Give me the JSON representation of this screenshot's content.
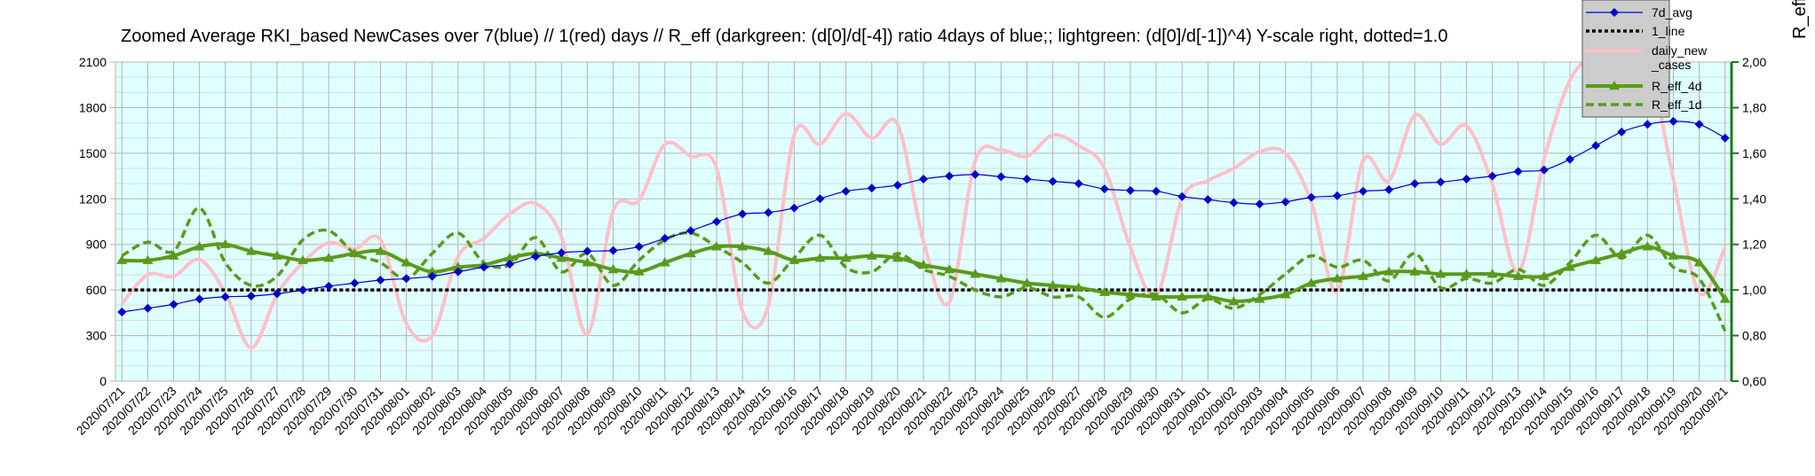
{
  "chart_data": {
    "type": "line",
    "title": "Zoomed Average RKI_based NewCases over 7(blue) // 1(red) days //  R_eff (darkgreen: (d[0]/d[-4]) ratio 4days of blue;; lightgreen: (d[0]/d[-1])^4) Y-scale right, dotted=1.0",
    "ylabel_right": "R_eff",
    "ylim_left": [
      0,
      2100
    ],
    "ylim_right": [
      0.6,
      2.0
    ],
    "yticks_left": [
      "0",
      "300",
      "600",
      "900",
      "1200",
      "1500",
      "1800",
      "2100"
    ],
    "yticks_right": [
      "0,60",
      "0,80",
      "1,00",
      "1,20",
      "1,40",
      "1,60",
      "1,80",
      "2,00"
    ],
    "grid": true,
    "legend_position": "top-right",
    "categories": [
      "2020/07/21",
      "2020/07/22",
      "2020/07/23",
      "2020/07/24",
      "2020/07/25",
      "2020/07/26",
      "2020/07/27",
      "2020/07/28",
      "2020/07/29",
      "2020/07/30",
      "2020/07/31",
      "2020/08/01",
      "2020/08/02",
      "2020/08/03",
      "2020/08/04",
      "2020/08/05",
      "2020/08/06",
      "2020/08/07",
      "2020/08/08",
      "2020/08/09",
      "2020/08/10",
      "2020/08/11",
      "2020/08/12",
      "2020/08/13",
      "2020/08/14",
      "2020/08/15",
      "2020/08/16",
      "2020/08/17",
      "2020/08/18",
      "2020/08/19",
      "2020/08/20",
      "2020/08/21",
      "2020/08/22",
      "2020/08/23",
      "2020/08/24",
      "2020/08/25",
      "2020/08/26",
      "2020/08/27",
      "2020/08/28",
      "2020/08/29",
      "2020/08/30",
      "2020/08/31",
      "2020/09/01",
      "2020/09/02",
      "2020/09/03",
      "2020/09/04",
      "2020/09/05",
      "2020/09/06",
      "2020/09/07",
      "2020/09/08",
      "2020/09/09",
      "2020/09/10",
      "2020/09/11",
      "2020/09/12",
      "2020/09/13",
      "2020/09/14",
      "2020/09/15",
      "2020/09/16",
      "2020/09/17",
      "2020/09/18",
      "2020/09/19",
      "2020/09/20",
      "2020/09/21"
    ],
    "series": [
      {
        "name": "7d_avg",
        "axis": "left",
        "color": "#0000cc",
        "marker": "diamond",
        "values": [
          455,
          480,
          505,
          540,
          555,
          560,
          575,
          600,
          625,
          645,
          665,
          675,
          690,
          720,
          750,
          770,
          820,
          845,
          855,
          860,
          885,
          940,
          990,
          1050,
          1100,
          1110,
          1140,
          1200,
          1250,
          1270,
          1290,
          1330,
          1350,
          1360,
          1345,
          1330,
          1315,
          1300,
          1265,
          1255,
          1250,
          1215,
          1195,
          1175,
          1165,
          1180,
          1210,
          1220,
          1250,
          1260,
          1300,
          1310,
          1330,
          1350,
          1380,
          1390,
          1460,
          1550,
          1640,
          1690,
          1710,
          1690,
          1600
        ]
      },
      {
        "name": "1_line",
        "axis": "right",
        "color": "#000000",
        "style": "dotted",
        "values": [
          1.0,
          1.0,
          1.0,
          1.0,
          1.0,
          1.0,
          1.0,
          1.0,
          1.0,
          1.0,
          1.0,
          1.0,
          1.0,
          1.0,
          1.0,
          1.0,
          1.0,
          1.0,
          1.0,
          1.0,
          1.0,
          1.0,
          1.0,
          1.0,
          1.0,
          1.0,
          1.0,
          1.0,
          1.0,
          1.0,
          1.0,
          1.0,
          1.0,
          1.0,
          1.0,
          1.0,
          1.0,
          1.0,
          1.0,
          1.0,
          1.0,
          1.0,
          1.0,
          1.0,
          1.0,
          1.0,
          1.0,
          1.0,
          1.0,
          1.0,
          1.0,
          1.0,
          1.0,
          1.0,
          1.0,
          1.0,
          1.0,
          1.0,
          1.0,
          1.0,
          1.0,
          1.0,
          1.0
        ]
      },
      {
        "name": "daily_new_cases",
        "legend_lines": [
          "daily_new",
          "_cases"
        ],
        "axis": "left",
        "color": "#ffc0c8",
        "values": [
          510,
          700,
          690,
          800,
          580,
          220,
          570,
          780,
          910,
          870,
          930,
          380,
          300,
          820,
          940,
          1100,
          1170,
          950,
          310,
          1120,
          1190,
          1560,
          1480,
          1400,
          460,
          500,
          1620,
          1560,
          1760,
          1600,
          1690,
          920,
          520,
          1450,
          1520,
          1480,
          1620,
          1550,
          1400,
          880,
          560,
          1200,
          1320,
          1400,
          1510,
          1500,
          1180,
          590,
          1450,
          1320,
          1750,
          1560,
          1680,
          1300,
          720,
          1460,
          1980,
          2150,
          2150,
          2120,
          1330,
          580,
          880
        ]
      },
      {
        "name": "R_eff_4d",
        "axis": "right",
        "color": "#5a9a1a",
        "marker": "triangle",
        "values": [
          1.13,
          1.13,
          1.15,
          1.19,
          1.2,
          1.17,
          1.15,
          1.13,
          1.14,
          1.16,
          1.17,
          1.12,
          1.08,
          1.1,
          1.11,
          1.14,
          1.16,
          1.14,
          1.12,
          1.09,
          1.08,
          1.12,
          1.16,
          1.19,
          1.19,
          1.17,
          1.13,
          1.14,
          1.14,
          1.15,
          1.14,
          1.11,
          1.09,
          1.07,
          1.05,
          1.03,
          1.02,
          1.01,
          0.99,
          0.98,
          0.97,
          0.97,
          0.97,
          0.95,
          0.96,
          0.98,
          1.03,
          1.05,
          1.06,
          1.08,
          1.08,
          1.07,
          1.07,
          1.07,
          1.06,
          1.06,
          1.1,
          1.13,
          1.16,
          1.19,
          1.15,
          1.12,
          0.96
        ]
      },
      {
        "name": "R_eff_1d",
        "axis": "right",
        "color": "#5a9a1a",
        "style": "dashed",
        "values": [
          1.15,
          1.21,
          1.17,
          1.36,
          1.12,
          1.02,
          1.06,
          1.22,
          1.26,
          1.16,
          1.12,
          1.05,
          1.16,
          1.25,
          1.12,
          1.11,
          1.23,
          1.08,
          1.16,
          1.02,
          1.13,
          1.22,
          1.25,
          1.19,
          1.12,
          1.03,
          1.14,
          1.24,
          1.1,
          1.08,
          1.16,
          1.09,
          1.06,
          1.0,
          0.97,
          1.01,
          0.97,
          0.97,
          0.88,
          0.96,
          0.98,
          0.9,
          0.96,
          0.92,
          0.98,
          1.07,
          1.15,
          1.1,
          1.13,
          1.04,
          1.16,
          1.01,
          1.05,
          1.03,
          1.09,
          1.02,
          1.12,
          1.24,
          1.14,
          1.24,
          1.1,
          1.05,
          0.82
        ]
      }
    ]
  }
}
